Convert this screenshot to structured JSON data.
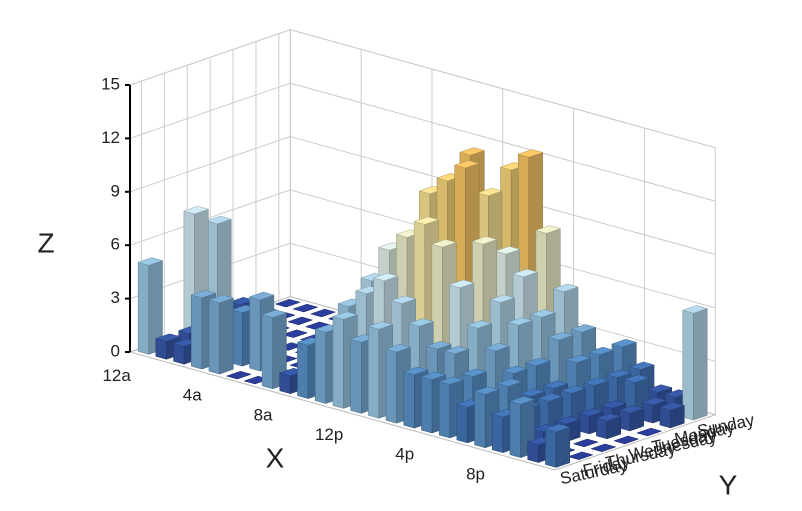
{
  "chart_data": {
    "type": "bar3d",
    "xlabel": "X",
    "ylabel": "Y",
    "zlabel": "Z",
    "xlim": [
      0,
      24
    ],
    "xticks": [
      {
        "value": 0,
        "label": "12a"
      },
      {
        "value": 4,
        "label": "4a"
      },
      {
        "value": 8,
        "label": "8a"
      },
      {
        "value": 12,
        "label": "12p"
      },
      {
        "value": 16,
        "label": "4p"
      },
      {
        "value": 20,
        "label": "8p"
      }
    ],
    "y": [
      "Sunday",
      "Monday",
      "Tuesday",
      "Wednesday",
      "Thursday",
      "Friday",
      "Saturday"
    ],
    "zlim": [
      0,
      15
    ],
    "zticks": [
      0,
      3,
      6,
      9,
      12,
      15
    ],
    "grid": true,
    "colorscale": [
      "#2c3e9c",
      "#4a86c5",
      "#9ccbe8",
      "#e0f6fb",
      "#fff2b0",
      "#fdd56e",
      "#f9a050"
    ],
    "z": [
      [
        0,
        0,
        0,
        0,
        0,
        0,
        0,
        0,
        0,
        0,
        0,
        0,
        2,
        3,
        4,
        4,
        3,
        2,
        2,
        3,
        2,
        1,
        1,
        6
      ],
      [
        0,
        0,
        0,
        0,
        0,
        0,
        0,
        0,
        0,
        1,
        3,
        5,
        8,
        10,
        12,
        13,
        9,
        6,
        4,
        3,
        2,
        2,
        1,
        1
      ],
      [
        1,
        0,
        0,
        0,
        0,
        0,
        0,
        0,
        0,
        2,
        4,
        7,
        10,
        13,
        11,
        8,
        7,
        5,
        4,
        3,
        2,
        1,
        1,
        0
      ],
      [
        6,
        0,
        0,
        0,
        0,
        0,
        0,
        0,
        0,
        2,
        5,
        8,
        11,
        12,
        13,
        9,
        6,
        5,
        3,
        2,
        2,
        1,
        1,
        0
      ],
      [
        7,
        0,
        0,
        0,
        0,
        0,
        0,
        0,
        0,
        3,
        6,
        8,
        9,
        10,
        9,
        7,
        5,
        4,
        3,
        2,
        2,
        1,
        0,
        0
      ],
      [
        0,
        1,
        0,
        0,
        3,
        4,
        0,
        0,
        0,
        3,
        5,
        6,
        7,
        6,
        5,
        4,
        4,
        3,
        2,
        3,
        2,
        1,
        0,
        0
      ],
      [
        5,
        1,
        1,
        4,
        4,
        0,
        0,
        4,
        1,
        3,
        4,
        5,
        4,
        5,
        4,
        3,
        3,
        3,
        2,
        3,
        2,
        3,
        1,
        2
      ]
    ]
  }
}
